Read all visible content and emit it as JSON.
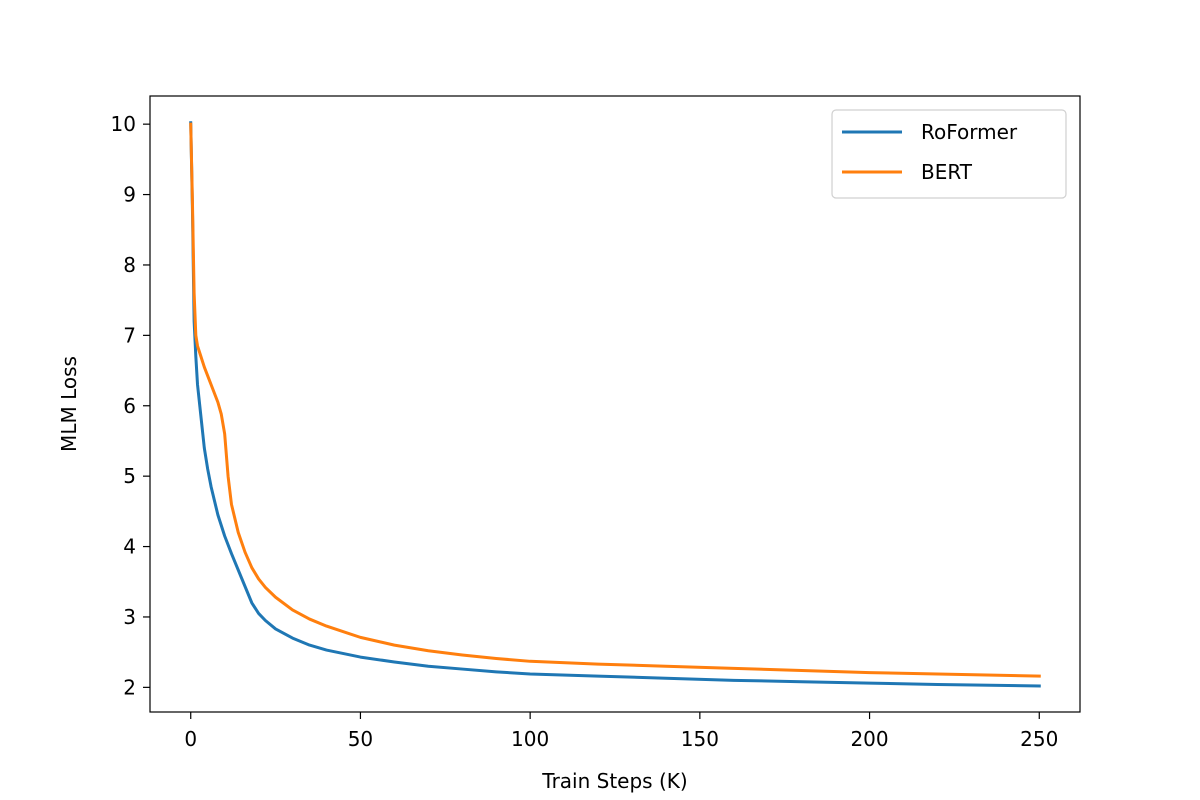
{
  "chart_data": {
    "type": "line",
    "title": "",
    "xlabel": "Train Steps (K)",
    "ylabel": "MLM Loss",
    "xlim": [
      -12,
      262
    ],
    "ylim": [
      1.65,
      10.4
    ],
    "xticks": [
      0,
      50,
      100,
      150,
      200,
      250
    ],
    "yticks": [
      2,
      3,
      4,
      5,
      6,
      7,
      8,
      9,
      10
    ],
    "grid": false,
    "legend_position": "top-right",
    "series": [
      {
        "name": "RoFormer",
        "color": "#1f77b4",
        "x": [
          0,
          0.5,
          1,
          1.5,
          2,
          3,
          4,
          5,
          6,
          8,
          10,
          12,
          15,
          18,
          20,
          22,
          25,
          30,
          35,
          40,
          50,
          60,
          70,
          80,
          90,
          100,
          120,
          140,
          160,
          180,
          200,
          220,
          250
        ],
        "y": [
          10.02,
          8.8,
          7.2,
          6.7,
          6.3,
          5.85,
          5.4,
          5.1,
          4.85,
          4.45,
          4.15,
          3.9,
          3.55,
          3.2,
          3.05,
          2.95,
          2.83,
          2.7,
          2.6,
          2.53,
          2.43,
          2.36,
          2.3,
          2.26,
          2.22,
          2.19,
          2.16,
          2.13,
          2.1,
          2.08,
          2.06,
          2.04,
          2.02
        ]
      },
      {
        "name": "BERT",
        "color": "#ff7f0e",
        "x": [
          0,
          0.5,
          1,
          1.5,
          2,
          3,
          4,
          6,
          8,
          9,
          10,
          11,
          12,
          14,
          16,
          18,
          20,
          22,
          25,
          30,
          35,
          40,
          50,
          60,
          70,
          80,
          90,
          100,
          120,
          140,
          160,
          180,
          200,
          220,
          250
        ],
        "y": [
          10.0,
          8.9,
          7.6,
          7.0,
          6.85,
          6.7,
          6.55,
          6.3,
          6.05,
          5.88,
          5.6,
          5.0,
          4.6,
          4.2,
          3.92,
          3.7,
          3.54,
          3.42,
          3.28,
          3.1,
          2.97,
          2.87,
          2.71,
          2.6,
          2.52,
          2.46,
          2.41,
          2.37,
          2.33,
          2.3,
          2.27,
          2.24,
          2.21,
          2.19,
          2.16
        ]
      }
    ]
  }
}
